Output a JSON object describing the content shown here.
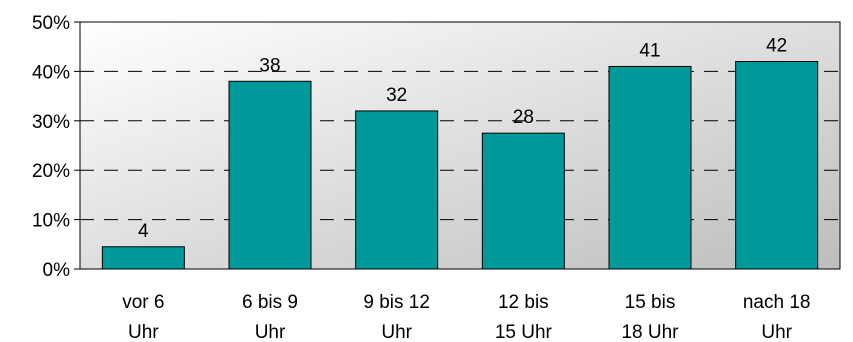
{
  "chart_data": {
    "type": "bar",
    "title": "",
    "xlabel": "",
    "ylabel": "",
    "ylim": [
      0,
      50
    ],
    "y_ticks": [
      0,
      10,
      20,
      30,
      40,
      50
    ],
    "y_tick_format": "%",
    "grid": "dashed horizontal",
    "categories": [
      [
        "vor 6",
        "Uhr"
      ],
      [
        "6 bis 9",
        "Uhr"
      ],
      [
        "9 bis 12",
        "Uhr"
      ],
      [
        "12 bis",
        "15 Uhr"
      ],
      [
        "15 bis",
        "18 Uhr"
      ],
      [
        "nach 18",
        "Uhr"
      ]
    ],
    "values": [
      4,
      38,
      32,
      28,
      41,
      42
    ],
    "bar_display_values": [
      4.5,
      38,
      32,
      27.5,
      41,
      42
    ],
    "bar_color": "#009999",
    "plot_background": [
      "#ffffff",
      "#c0c0c0"
    ]
  }
}
